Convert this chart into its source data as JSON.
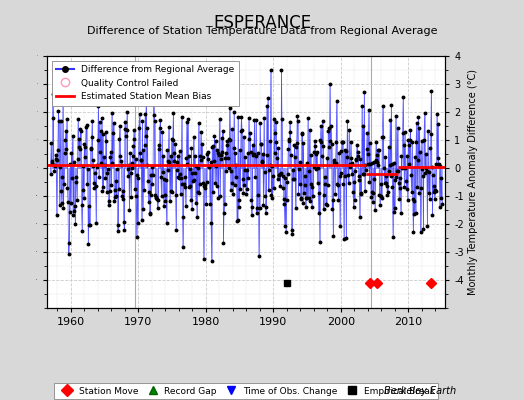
{
  "title": "ESPERANCE",
  "subtitle": "Difference of Station Temperature Data from Regional Average",
  "ylabel_right": "Monthly Temperature Anomaly Difference (°C)",
  "ylim": [
    -5,
    4
  ],
  "yticks": [
    -4,
    -3,
    -2,
    -1,
    0,
    1,
    2,
    3,
    4
  ],
  "xlim": [
    1956.5,
    2015.5
  ],
  "xticks": [
    1960,
    1970,
    1980,
    1990,
    2000,
    2010
  ],
  "bias_segments": [
    {
      "x_start": 1956.5,
      "x_end": 2003.7,
      "bias": 0.1
    },
    {
      "x_start": 2003.7,
      "x_end": 2008.5,
      "bias": -0.2
    },
    {
      "x_start": 2008.5,
      "x_end": 2015.5,
      "bias": 0.05
    }
  ],
  "obs_change_lines": [
    1969.5,
    2004.5
  ],
  "station_moves": [
    2004.3,
    2005.3,
    2013.3
  ],
  "empirical_breaks": [
    1992.0
  ],
  "figure_bg_color": "#d8d8d8",
  "plot_bg_color": "#ffffff",
  "line_color": "#3333ff",
  "stem_color": "#8888ff",
  "bias_line_color": "#ff0000",
  "grid_color": "#cccccc",
  "seed": 12345,
  "n_points": 696,
  "start_year": 1957.0,
  "end_year": 2015.0,
  "footer": "Berkeley Earth"
}
